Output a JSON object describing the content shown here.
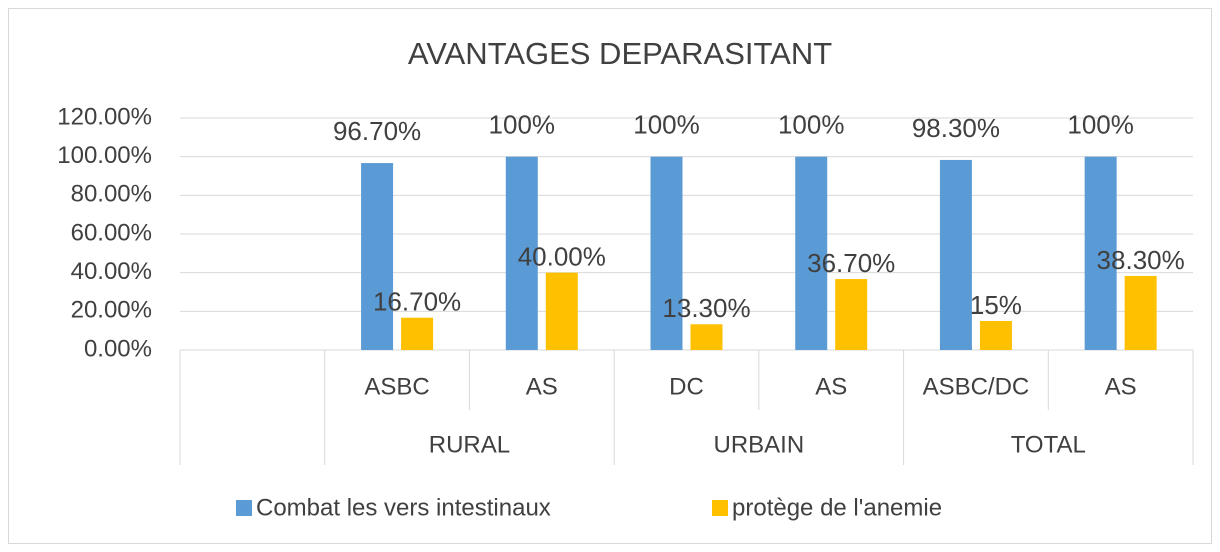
{
  "chart_data": {
    "type": "bar",
    "title": "AVANTAGES DEPARASITANT",
    "categories": [
      null,
      "ASBC",
      "AS",
      "DC",
      "AS",
      "ASBC/DC",
      "AS"
    ],
    "groups": [
      {
        "label": "RURAL",
        "categories": [
          1,
          2
        ]
      },
      {
        "label": "URBAIN",
        "categories": [
          3,
          4
        ]
      },
      {
        "label": "TOTAL",
        "categories": [
          5,
          6
        ]
      }
    ],
    "series": [
      {
        "name": "Combat les vers intestinaux",
        "color": "#5b9bd5",
        "values": [
          null,
          96.7,
          100,
          100,
          100,
          98.3,
          100
        ],
        "value_labels": [
          null,
          "96.70%",
          "100%",
          "100%",
          "100%",
          "98.30%",
          "100%"
        ]
      },
      {
        "name": "protège de l'anemie",
        "color": "#ffc000",
        "values": [
          null,
          16.7,
          40,
          13.3,
          36.7,
          15,
          38.3
        ],
        "value_labels": [
          null,
          "16.70%",
          "40.00%",
          "13.30%",
          "36.70%",
          "15%",
          "38.30%"
        ]
      }
    ],
    "ylim": [
      0,
      120
    ],
    "yticks": [
      {
        "value": 0,
        "label": "0.00%"
      },
      {
        "value": 20,
        "label": "20.00%"
      },
      {
        "value": 40,
        "label": "40.00%"
      },
      {
        "value": 60,
        "label": "60.00%"
      },
      {
        "value": 80,
        "label": "80.00%"
      },
      {
        "value": 100,
        "label": "100.00%"
      },
      {
        "value": 120,
        "label": "120.00%"
      }
    ],
    "grid": true,
    "legend": "bottom"
  }
}
